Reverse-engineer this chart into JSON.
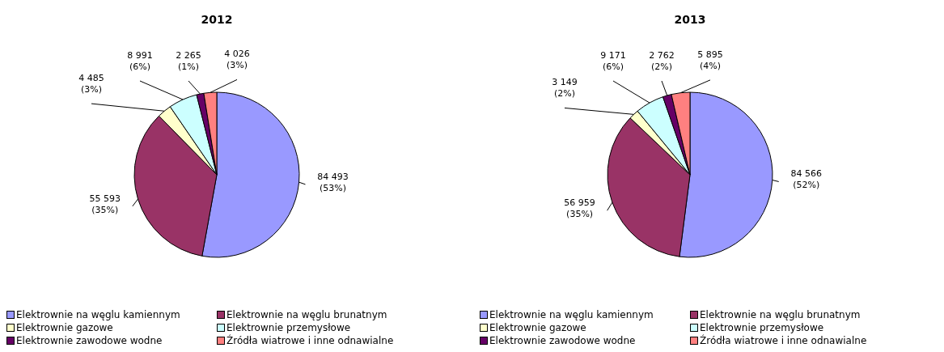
{
  "chart_data": [
    {
      "type": "pie",
      "title": "2012",
      "categories": [
        "Elektrownie na węglu kamiennym",
        "Elektrownie na węglu brunatnym",
        "Elektrownie gazowe",
        "Elektrownie przemysłowe",
        "Elektrownie zawodowe wodne",
        "Źródła wiatrowe i inne odnawialne"
      ],
      "values": [
        84493,
        55593,
        4485,
        8991,
        2265,
        4026
      ],
      "colors": [
        "#9999ff",
        "#993366",
        "#ffffcc",
        "#ccffff",
        "#660066",
        "#ff8080"
      ],
      "value_labels": [
        "84 493 (53%)",
        "55 593 (35%)",
        "4 485 (3%)",
        "8 991 (6%)",
        "2 265 (1%)",
        "4 026 (3%)"
      ],
      "legend": "bottom"
    },
    {
      "type": "pie",
      "title": "2013",
      "categories": [
        "Elektrownie na węglu kamiennym",
        "Elektrownie na węglu brunatnym",
        "Elektrownie gazowe",
        "Elektrownie przemysłowe",
        "Elektrownie zawodowe wodne",
        "Źródła wiatrowe i inne odnawialne"
      ],
      "values": [
        84566,
        56959,
        3149,
        9171,
        2762,
        5895
      ],
      "colors": [
        "#9999ff",
        "#993366",
        "#ffffcc",
        "#ccffff",
        "#660066",
        "#ff8080"
      ],
      "value_labels": [
        "84 566 (52%)",
        "56 959 (35%)",
        "3 149 (2%)",
        "9 171 (6%)",
        "2 762 (2%)",
        "5 895 (4%)"
      ],
      "legend": "bottom"
    }
  ]
}
